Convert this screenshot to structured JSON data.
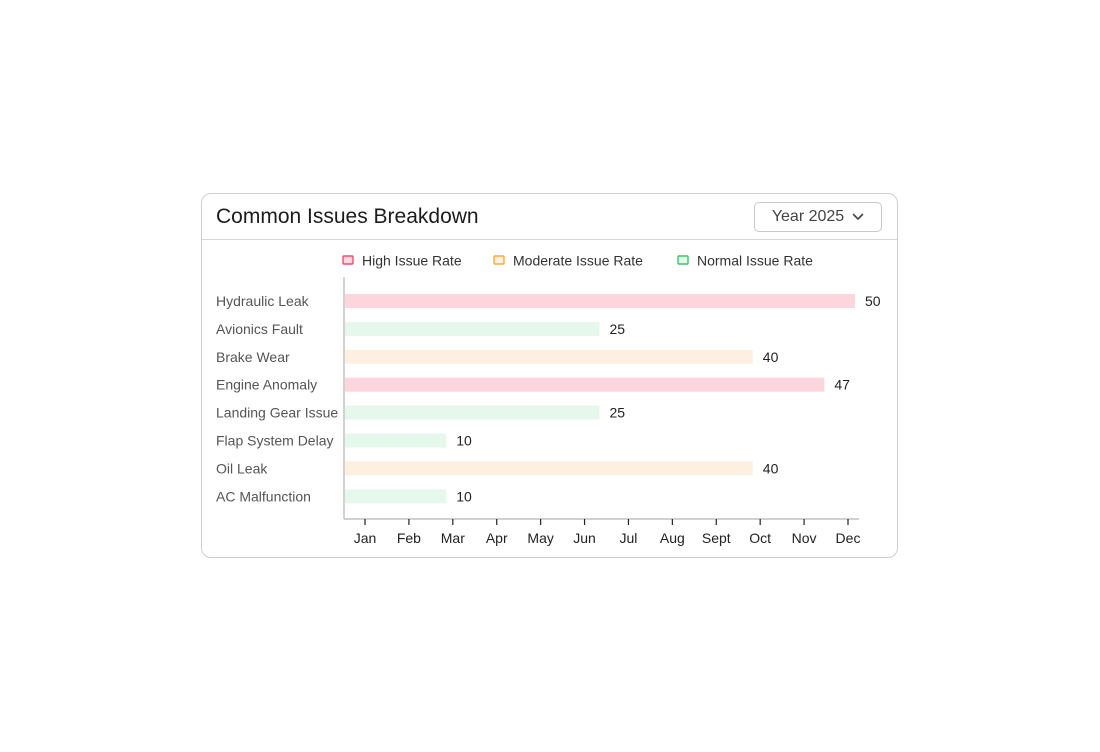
{
  "card": {
    "title": "Common Issues Breakdown",
    "year_select": {
      "value": "Year 2025",
      "icon": "chevron-down-icon"
    }
  },
  "legend": [
    {
      "label": "High Issue Rate",
      "key": "high"
    },
    {
      "label": "Moderate Issue Rate",
      "key": "moderate"
    },
    {
      "label": "Normal Issue Rate",
      "key": "normal"
    }
  ],
  "colors": {
    "high": {
      "fill": "#fdd5dd",
      "stroke": "#e8506f"
    },
    "moderate": {
      "fill": "#fef0e1",
      "stroke": "#f5ad3d"
    },
    "normal": {
      "fill": "#e6f8ec",
      "stroke": "#40c26a"
    }
  },
  "chart_data": {
    "type": "bar",
    "orientation": "horizontal",
    "title": "Common Issues Breakdown",
    "categories": [
      "Hydraulic Leak",
      "Avionics Fault",
      "Brake Wear",
      "Engine Anomaly",
      "Landing Gear Issue",
      "Flap System Delay",
      "Oil Leak",
      "AC Malfunction"
    ],
    "values": [
      50,
      25,
      40,
      47,
      25,
      10,
      40,
      10
    ],
    "levels": [
      "high",
      "normal",
      "moderate",
      "high",
      "normal",
      "normal",
      "moderate",
      "normal"
    ],
    "x_tick_labels": [
      "Jan",
      "Feb",
      "Mar",
      "Apr",
      "May",
      "Jun",
      "Jul",
      "Aug",
      "Sept",
      "Oct",
      "Nov",
      "Dec"
    ],
    "xlim": [
      0,
      50
    ],
    "legend_position": "top",
    "grid": false
  }
}
